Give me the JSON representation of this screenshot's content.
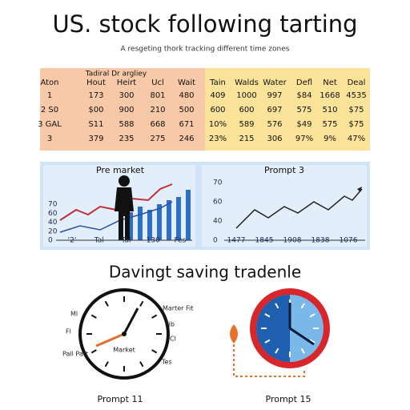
{
  "header": {
    "title": "US. stock following tarting",
    "subtitle": "A resgeting thork tracking different time zones"
  },
  "table": {
    "caption": "Tadiral Dr argliey",
    "columns": [
      "Aton",
      "Hout",
      "Heirt",
      "Ucl",
      "Wait",
      "Tain",
      "Walds",
      "Water",
      "Defl",
      "Net",
      "Deal"
    ],
    "rows": [
      [
        "1",
        "173",
        "300",
        "801",
        "480",
        "409",
        "1000",
        "997",
        "$84",
        "1668",
        "4535"
      ],
      [
        "2  S0",
        "$00",
        "900",
        "210",
        "500",
        "600",
        "600",
        "697",
        "575",
        "510",
        "$75"
      ],
      [
        "3  GAL",
        "S11",
        "588",
        "668",
        "671",
        "10%",
        "589",
        "576",
        "$49",
        "575",
        "$75"
      ],
      [
        "3",
        "379",
        "235",
        "275",
        "246",
        "23%",
        "215",
        "306",
        "97%",
        "9%",
        "47%"
      ]
    ]
  },
  "panels": [
    {
      "title": "Pre market",
      "y_labels": [
        "70",
        "60",
        "40",
        "20",
        "0"
      ],
      "x_labels": [
        "'2'",
        "Tal",
        "Tal",
        "130",
        "Fes"
      ]
    },
    {
      "title": "Prompt 3",
      "y_labels": [
        "70",
        "60",
        "40",
        "0"
      ],
      "x_labels": [
        "1477",
        "1845",
        "1908",
        "1838",
        "1076"
      ]
    }
  ],
  "section": {
    "title": "Davingt saving tradenle"
  },
  "clocks": [
    {
      "center": "Market",
      "left_labels": [
        "Ml",
        "Fl",
        "Pall Patt"
      ],
      "right_labels": [
        "Marter Fit",
        "Pib",
        "Cl",
        "Tes"
      ],
      "caption": "Prompt 11"
    },
    {
      "caption": "Prompt 15"
    }
  ]
}
